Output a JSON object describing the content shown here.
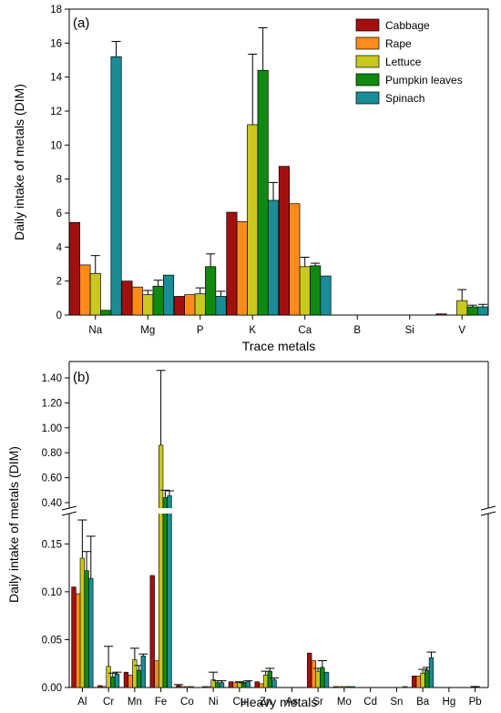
{
  "chart_data": [
    {
      "type": "bar",
      "panel_label": "(a)",
      "xlabel": "Trace metals",
      "ylabel": "Daily intake of metals (DIM)",
      "ylim": [
        0,
        18
      ],
      "yticks": [
        0,
        2,
        4,
        6,
        8,
        10,
        12,
        14,
        16,
        18
      ],
      "categories": [
        "Na",
        "Mg",
        "P",
        "K",
        "Ca",
        "B",
        "Si",
        "V"
      ],
      "legend_position": "top-right",
      "series": [
        {
          "name": "Cabbage",
          "color": "#a30f0f",
          "values": [
            5.45,
            2.0,
            1.1,
            6.05,
            8.75,
            0,
            0,
            0.07
          ],
          "errors": [
            0,
            0,
            0,
            0,
            0,
            0,
            0,
            0
          ]
        },
        {
          "name": "Rape",
          "color": "#ff8c1a",
          "values": [
            2.95,
            1.65,
            1.2,
            5.5,
            6.55,
            0,
            0,
            0
          ],
          "errors": [
            0,
            0,
            0,
            0,
            0,
            0,
            0,
            0
          ]
        },
        {
          "name": "Lettuce",
          "color": "#c8c81e",
          "values": [
            2.45,
            1.2,
            1.25,
            11.2,
            2.85,
            0,
            0,
            0.85
          ],
          "errors": [
            1.05,
            0.25,
            0.35,
            4.15,
            0.55,
            0,
            0,
            0.65
          ]
        },
        {
          "name": "Pumpkin leaves",
          "color": "#0f8a0f",
          "values": [
            0.28,
            1.7,
            2.85,
            14.4,
            2.9,
            0,
            0,
            0.48
          ],
          "errors": [
            0,
            0.35,
            0.75,
            2.5,
            0.15,
            0,
            0,
            0.1
          ]
        },
        {
          "name": "Spinach",
          "color": "#1a8c96",
          "values": [
            15.2,
            2.35,
            1.1,
            6.75,
            2.3,
            0,
            0,
            0.48
          ],
          "errors": [
            0.9,
            0,
            0.3,
            1.05,
            0,
            0,
            0,
            0.15
          ]
        }
      ]
    },
    {
      "type": "bar",
      "panel_label": "(b)",
      "xlabel": "Heavy metals",
      "ylabel": "Daily intake of metals (DIM)",
      "axis_break": {
        "lower_range": [
          0,
          0.175
        ],
        "upper_range": [
          0.4,
          1.4
        ]
      },
      "yticks_lower": [
        "0.00",
        "0.05",
        "0.10",
        "0.15"
      ],
      "yticks_upper": [
        "0.40",
        "0.60",
        "0.80",
        "1.00",
        "1.20",
        "1.40"
      ],
      "categories": [
        "Al",
        "Cr",
        "Mn",
        "Fe",
        "Co",
        "Ni",
        "Cu",
        "Zn",
        "As",
        "Sr",
        "Mo",
        "Cd",
        "Sn",
        "Ba",
        "Hg",
        "Pb"
      ],
      "series": [
        {
          "name": "Cabbage",
          "color": "#a30f0f",
          "values": [
            0.105,
            0.002,
            0.016,
            0.117,
            0.002,
            0.001,
            0.006,
            0.006,
            0,
            0.036,
            0.001,
            0,
            0,
            0.012,
            0,
            0
          ],
          "errors": [
            0,
            0,
            0,
            0,
            0.001,
            0,
            0,
            0,
            0,
            0,
            0,
            0,
            0,
            0,
            0,
            0
          ]
        },
        {
          "name": "Rape",
          "color": "#ff8c1a",
          "values": [
            0.098,
            0.001,
            0.013,
            0.028,
            0.001,
            0.001,
            0.005,
            0.004,
            0,
            0.028,
            0.001,
            0,
            0,
            0.012,
            0,
            0
          ],
          "errors": [
            0,
            0,
            0,
            0,
            0,
            0,
            0,
            0,
            0,
            0,
            0,
            0,
            0,
            0,
            0,
            0
          ]
        },
        {
          "name": "Lettuce",
          "color": "#c8c81e",
          "values": [
            0.135,
            0.022,
            0.029,
            0.86,
            0.001,
            0.008,
            0.005,
            0.013,
            0,
            0.017,
            0.001,
            0,
            0,
            0.015,
            0,
            0
          ],
          "errors": [
            0.04,
            0.021,
            0.012,
            0.6,
            0,
            0.008,
            0.001,
            0.004,
            0,
            0.003,
            0,
            0,
            0,
            0.004,
            0,
            0.001
          ]
        },
        {
          "name": "Pumpkin leaves",
          "color": "#0f8a0f",
          "values": [
            0.122,
            0.011,
            0.018,
            0.44,
            0.001,
            0.005,
            0.004,
            0.017,
            0,
            0.021,
            0.001,
            0,
            0,
            0.018,
            0,
            0
          ],
          "errors": [
            0.02,
            0.004,
            0.005,
            0.06,
            0,
            0.002,
            0.001,
            0.003,
            0,
            0.007,
            0,
            0,
            0,
            0.003,
            0,
            0
          ]
        },
        {
          "name": "Spinach",
          "color": "#1a8c96",
          "values": [
            0.114,
            0.014,
            0.033,
            0.455,
            0,
            0.005,
            0.006,
            0.008,
            0,
            0.016,
            0.001,
            0,
            0.001,
            0.031,
            0,
            0
          ],
          "errors": [
            0.044,
            0.002,
            0.002,
            0.04,
            0,
            0.002,
            0.001,
            0.002,
            0,
            0,
            0,
            0,
            0,
            0.006,
            0,
            0
          ]
        }
      ]
    }
  ]
}
